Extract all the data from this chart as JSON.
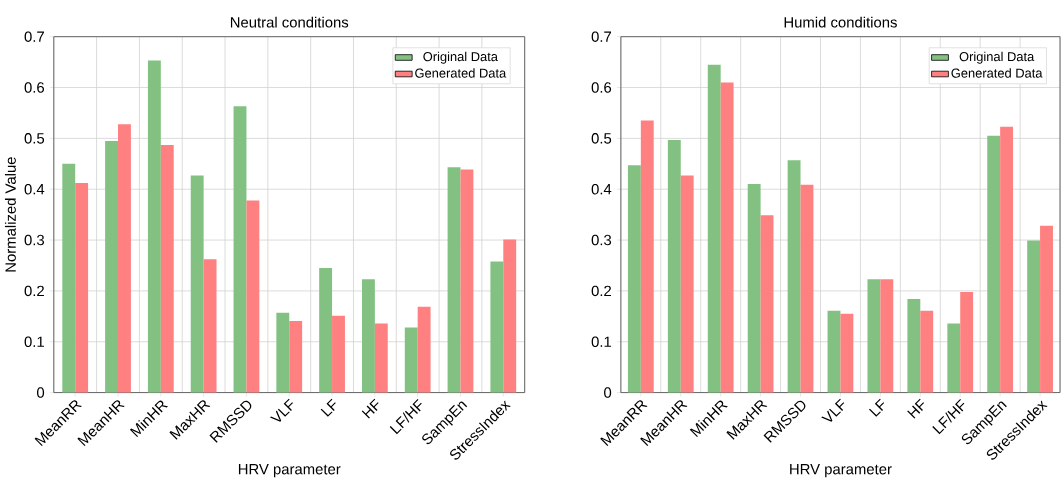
{
  "chart_data": [
    {
      "type": "bar",
      "title": "Neutral conditions",
      "xlabel": "HRV parameter",
      "ylabel": "Normalized Value",
      "categories": [
        "MeanRR",
        "MeanHR",
        "MinHR",
        "MaxHR",
        "RMSSD",
        "VLF",
        "LF",
        "HF",
        "LF/HF",
        "SampEn",
        "StressIndex"
      ],
      "series": [
        {
          "name": "Original Data",
          "color": "#82c182",
          "values": [
            0.45,
            0.495,
            0.653,
            0.427,
            0.563,
            0.157,
            0.245,
            0.223,
            0.128,
            0.443,
            0.258
          ]
        },
        {
          "name": "Generated Data",
          "color": "#ff8080",
          "values": [
            0.412,
            0.528,
            0.487,
            0.262,
            0.378,
            0.141,
            0.151,
            0.136,
            0.169,
            0.439,
            0.301
          ]
        }
      ],
      "ylim": [
        0,
        0.7
      ],
      "yticks": [
        0,
        0.1,
        0.2,
        0.3,
        0.4,
        0.5,
        0.6,
        0.7
      ],
      "grid": true,
      "legend": "top right"
    },
    {
      "type": "bar",
      "title": "Humid conditions",
      "xlabel": "HRV parameter",
      "categories": [
        "MeanRR",
        "MeanHR",
        "MinHR",
        "MaxHR",
        "RMSSD",
        "VLF",
        "LF",
        "HF",
        "LF/HF",
        "SampEn",
        "StressIndex"
      ],
      "series": [
        {
          "name": "Original Data",
          "color": "#82c182",
          "values": [
            0.447,
            0.497,
            0.645,
            0.41,
            0.457,
            0.161,
            0.223,
            0.184,
            0.136,
            0.505,
            0.299
          ]
        },
        {
          "name": "Generated Data",
          "color": "#ff8080",
          "values": [
            0.535,
            0.427,
            0.61,
            0.349,
            0.409,
            0.155,
            0.223,
            0.161,
            0.198,
            0.523,
            0.328
          ]
        }
      ],
      "ylim": [
        0,
        0.7
      ],
      "yticks": [
        0,
        0.1,
        0.2,
        0.3,
        0.4,
        0.5,
        0.6,
        0.7
      ],
      "grid": true,
      "legend": "top right"
    }
  ]
}
